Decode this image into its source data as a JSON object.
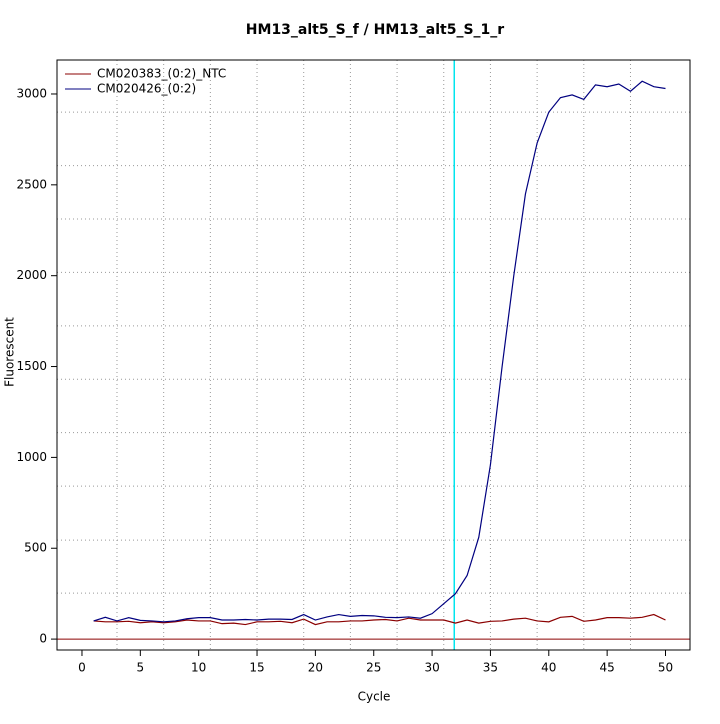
{
  "chart_data": {
    "type": "line",
    "title": "HM13_alt5_S_f / HM13_alt5_S_1_r",
    "x_label": "Cycle",
    "y_label": "Fluorescent",
    "x": [
      1,
      2,
      3,
      4,
      5,
      6,
      7,
      8,
      9,
      10,
      11,
      12,
      13,
      14,
      15,
      16,
      17,
      18,
      19,
      20,
      21,
      22,
      23,
      24,
      25,
      26,
      27,
      28,
      29,
      30,
      31,
      32,
      33,
      34,
      35,
      36,
      37,
      38,
      39,
      40,
      41,
      42,
      43,
      44,
      45,
      46,
      47,
      48,
      49,
      50
    ],
    "series": [
      {
        "name": "CM020383_(0:2)_NTC",
        "color": "#8b0000",
        "values": [
          100,
          95,
          95,
          98,
          90,
          95,
          90,
          95,
          105,
          100,
          100,
          85,
          88,
          80,
          95,
          95,
          98,
          90,
          110,
          80,
          95,
          95,
          100,
          100,
          105,
          108,
          100,
          115,
          105,
          105,
          105,
          88,
          105,
          88,
          98,
          100,
          110,
          115,
          100,
          95,
          120,
          125,
          98,
          105,
          118,
          118,
          115,
          120,
          135,
          105
        ]
      },
      {
        "name": "CM020426_(0:2)",
        "color": "#000080",
        "values": [
          100,
          120,
          100,
          118,
          103,
          100,
          95,
          100,
          112,
          118,
          118,
          105,
          105,
          108,
          105,
          110,
          110,
          108,
          135,
          105,
          122,
          135,
          125,
          130,
          128,
          120,
          118,
          122,
          115,
          140,
          195,
          250,
          350,
          560,
          960,
          1500,
          2000,
          2450,
          2730,
          2900,
          2980,
          2995,
          2970,
          3050,
          3040,
          3055,
          3015,
          3070,
          3040,
          3030
        ]
      }
    ],
    "xlim": [
      -2.14,
      52.1
    ],
    "ylim": [
      -60,
      3187
    ],
    "xticks": [
      0,
      5,
      10,
      15,
      20,
      25,
      30,
      35,
      40,
      45,
      50
    ],
    "yticks": [
      0,
      500,
      1000,
      1500,
      2000,
      2500,
      3000
    ],
    "grid_x": [
      3,
      7,
      11,
      15,
      19,
      23,
      27,
      31,
      35,
      39,
      43,
      47
    ],
    "grid_y": [
      253,
      545,
      842,
      1136,
      1430,
      1724,
      2018,
      2312,
      2606,
      2900
    ],
    "threshold_x": 31.9,
    "threshold_color": "#00e5ee",
    "baseline_y": 0,
    "baseline_color": "#8b0000",
    "legend": "top-left"
  }
}
